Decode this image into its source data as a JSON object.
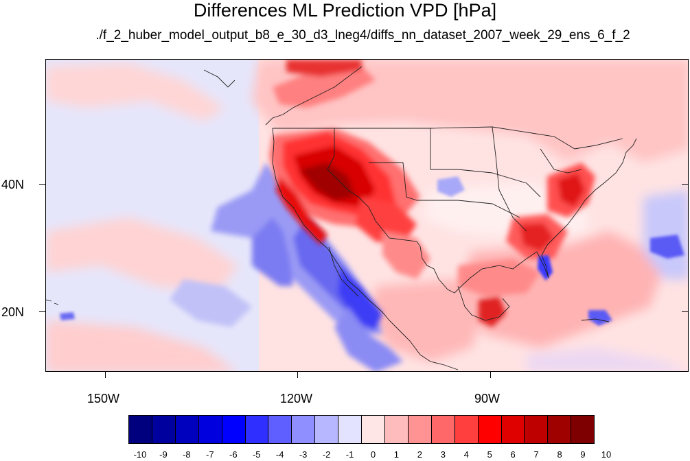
{
  "title": "Differences ML Prediction VPD [hPa]",
  "subtitle": "./f_2_huber_model_output_b8_e_30_d3_lneg4/diffs_nn_dataset_2007_week_29_ens_6_f_2",
  "map": {
    "projection": "cylindrical equidistant",
    "lon_range": [
      -159.4,
      -59.4
    ],
    "lat_range": [
      11.0,
      60.2
    ],
    "region": "North America (CONUS with Pacific, Mexico, Gulf, Atlantic)",
    "x_ticks": [
      {
        "label": "150W",
        "lon": -150
      },
      {
        "label": "120W",
        "lon": -120
      },
      {
        "label": "90W",
        "lon": -90
      }
    ],
    "y_ticks": [
      {
        "label": "40N",
        "lat": 40
      },
      {
        "label": "20N",
        "lat": 20
      }
    ],
    "field_summary": [
      {
        "area": "California / Nevada / Utah",
        "value": 10
      },
      {
        "area": "Arizona / New Mexico",
        "value": 7
      },
      {
        "area": "Pacific Northwest",
        "value": 6
      },
      {
        "area": "Mid-Atlantic / Virginia",
        "value": 6
      },
      {
        "area": "Georgia / Carolinas",
        "value": 5
      },
      {
        "area": "Gulf of Mexico / Yucatan",
        "value": 4
      },
      {
        "area": "Central Great Plains",
        "value": 1
      },
      {
        "area": "Baja California coastal Pacific",
        "value": -5
      },
      {
        "area": "Florida peninsula",
        "value": -4
      },
      {
        "area": "Eastern Pacific offshore",
        "value": -2
      },
      {
        "area": "Western Atlantic",
        "value": -2
      }
    ]
  },
  "colorbar": {
    "labels": [
      "-10",
      "-9",
      "-8",
      "-7",
      "-6",
      "-5",
      "-4",
      "-3",
      "-2",
      "-1",
      "0",
      "1",
      "2",
      "3",
      "4",
      "5",
      "6",
      "7",
      "8",
      "9",
      "10"
    ],
    "colors": [
      "#00007f",
      "#00009f",
      "#0000bf",
      "#0000df",
      "#0000ff",
      "#2f2fff",
      "#5f5fff",
      "#8f8fff",
      "#b7b7ff",
      "#e3e3ff",
      "#ffe6e6",
      "#ffbcbc",
      "#ff9292",
      "#ff6868",
      "#ff3e3e",
      "#ff0000",
      "#df0000",
      "#bf0000",
      "#9f0000",
      "#7f0000"
    ]
  }
}
